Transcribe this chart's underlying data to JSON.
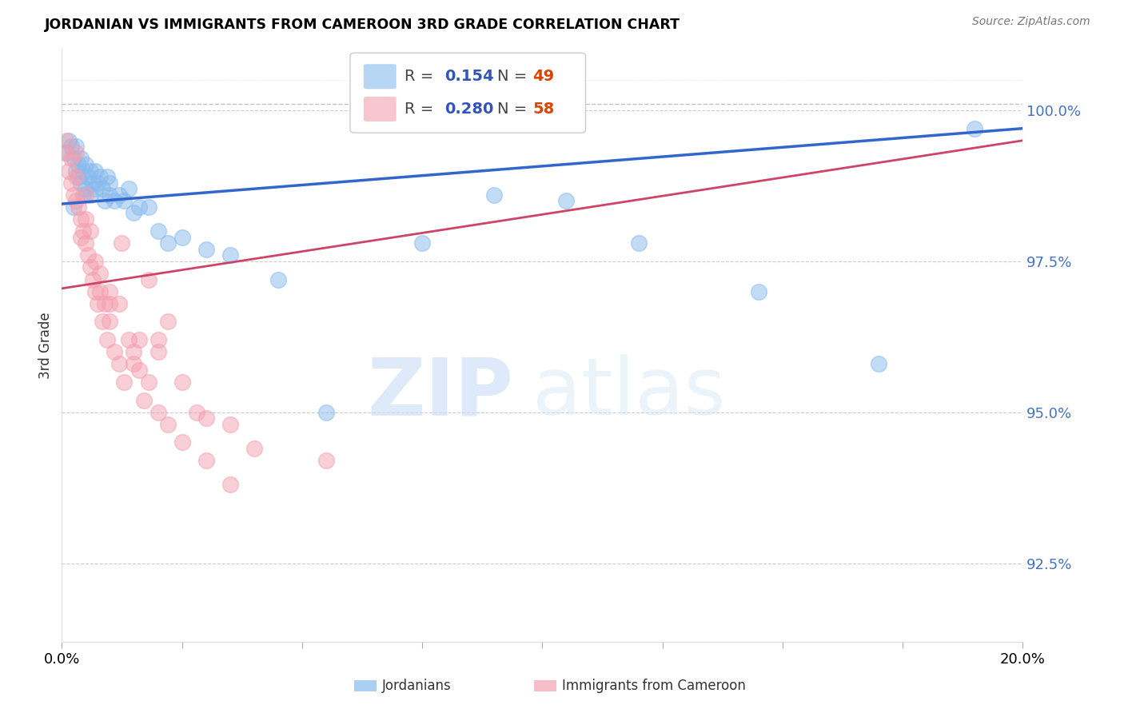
{
  "title": "JORDANIAN VS IMMIGRANTS FROM CAMEROON 3RD GRADE CORRELATION CHART",
  "source_text": "Source: ZipAtlas.com",
  "ylabel": "3rd Grade",
  "legend_blue_r": "0.154",
  "legend_blue_n": "49",
  "legend_pink_r": "0.280",
  "legend_pink_n": "58",
  "blue_color": "#88bbee",
  "pink_color": "#f4a0b0",
  "blue_line_color": "#3366cc",
  "pink_line_color": "#cc4466",
  "yticks": [
    92.5,
    95.0,
    97.5,
    100.0
  ],
  "ytick_labels": [
    "92.5%",
    "95.0%",
    "97.5%",
    "100.0%"
  ],
  "ymin": 91.2,
  "ymax": 101.0,
  "xmin": 0.0,
  "xmax": 20.0,
  "watermark_zip": "ZIP",
  "watermark_atlas": "atlas",
  "blue_x": [
    0.1,
    0.15,
    0.2,
    0.25,
    0.3,
    0.3,
    0.35,
    0.35,
    0.4,
    0.4,
    0.45,
    0.5,
    0.5,
    0.55,
    0.6,
    0.6,
    0.65,
    0.7,
    0.7,
    0.75,
    0.8,
    0.85,
    0.9,
    0.95,
    1.0,
    1.0,
    1.1,
    1.2,
    1.3,
    1.4,
    1.5,
    1.6,
    1.8,
    2.0,
    2.2,
    2.5,
    3.0,
    3.5,
    4.5,
    5.5,
    7.5,
    9.0,
    10.5,
    12.0,
    14.5,
    17.0,
    19.0,
    0.25,
    0.45
  ],
  "blue_y": [
    99.3,
    99.5,
    99.4,
    99.2,
    99.0,
    99.4,
    99.1,
    98.9,
    98.8,
    99.2,
    99.0,
    98.7,
    99.1,
    98.9,
    99.0,
    98.6,
    98.8,
    98.7,
    99.0,
    98.8,
    98.9,
    98.7,
    98.5,
    98.9,
    98.6,
    98.8,
    98.5,
    98.6,
    98.5,
    98.7,
    98.3,
    98.4,
    98.4,
    98.0,
    97.8,
    97.9,
    97.7,
    97.6,
    97.2,
    95.0,
    97.8,
    98.6,
    98.5,
    97.8,
    97.0,
    95.8,
    99.7,
    98.4,
    98.6
  ],
  "pink_x": [
    0.05,
    0.1,
    0.15,
    0.2,
    0.2,
    0.25,
    0.3,
    0.3,
    0.35,
    0.4,
    0.4,
    0.45,
    0.5,
    0.5,
    0.55,
    0.6,
    0.65,
    0.7,
    0.75,
    0.8,
    0.85,
    0.9,
    0.95,
    1.0,
    1.1,
    1.2,
    1.3,
    1.4,
    1.5,
    1.6,
    1.7,
    1.8,
    2.0,
    2.2,
    2.5,
    3.0,
    3.5,
    4.0,
    5.5,
    1.25,
    0.3,
    0.5,
    0.7,
    1.0,
    1.5,
    2.0,
    2.8,
    3.5,
    1.8,
    2.2,
    0.6,
    0.8,
    1.2,
    1.6,
    2.5,
    3.0,
    1.0,
    2.0
  ],
  "pink_y": [
    99.3,
    99.5,
    99.0,
    98.8,
    99.2,
    98.6,
    98.5,
    98.9,
    98.4,
    98.2,
    97.9,
    98.0,
    97.8,
    98.2,
    97.6,
    97.4,
    97.2,
    97.0,
    96.8,
    97.0,
    96.5,
    96.8,
    96.2,
    96.5,
    96.0,
    95.8,
    95.5,
    96.2,
    96.0,
    95.7,
    95.2,
    95.5,
    95.0,
    94.8,
    94.5,
    94.2,
    93.8,
    94.4,
    94.2,
    97.8,
    99.3,
    98.6,
    97.5,
    96.8,
    95.8,
    96.2,
    95.0,
    94.8,
    97.2,
    96.5,
    98.0,
    97.3,
    96.8,
    96.2,
    95.5,
    94.9,
    97.0,
    96.0
  ],
  "blue_line_x0": 0.0,
  "blue_line_x1": 20.0,
  "blue_line_y0": 98.45,
  "blue_line_y1": 99.7,
  "pink_line_x0": 0.0,
  "pink_line_x1": 20.0,
  "pink_line_y0": 97.05,
  "pink_line_y1": 99.5
}
